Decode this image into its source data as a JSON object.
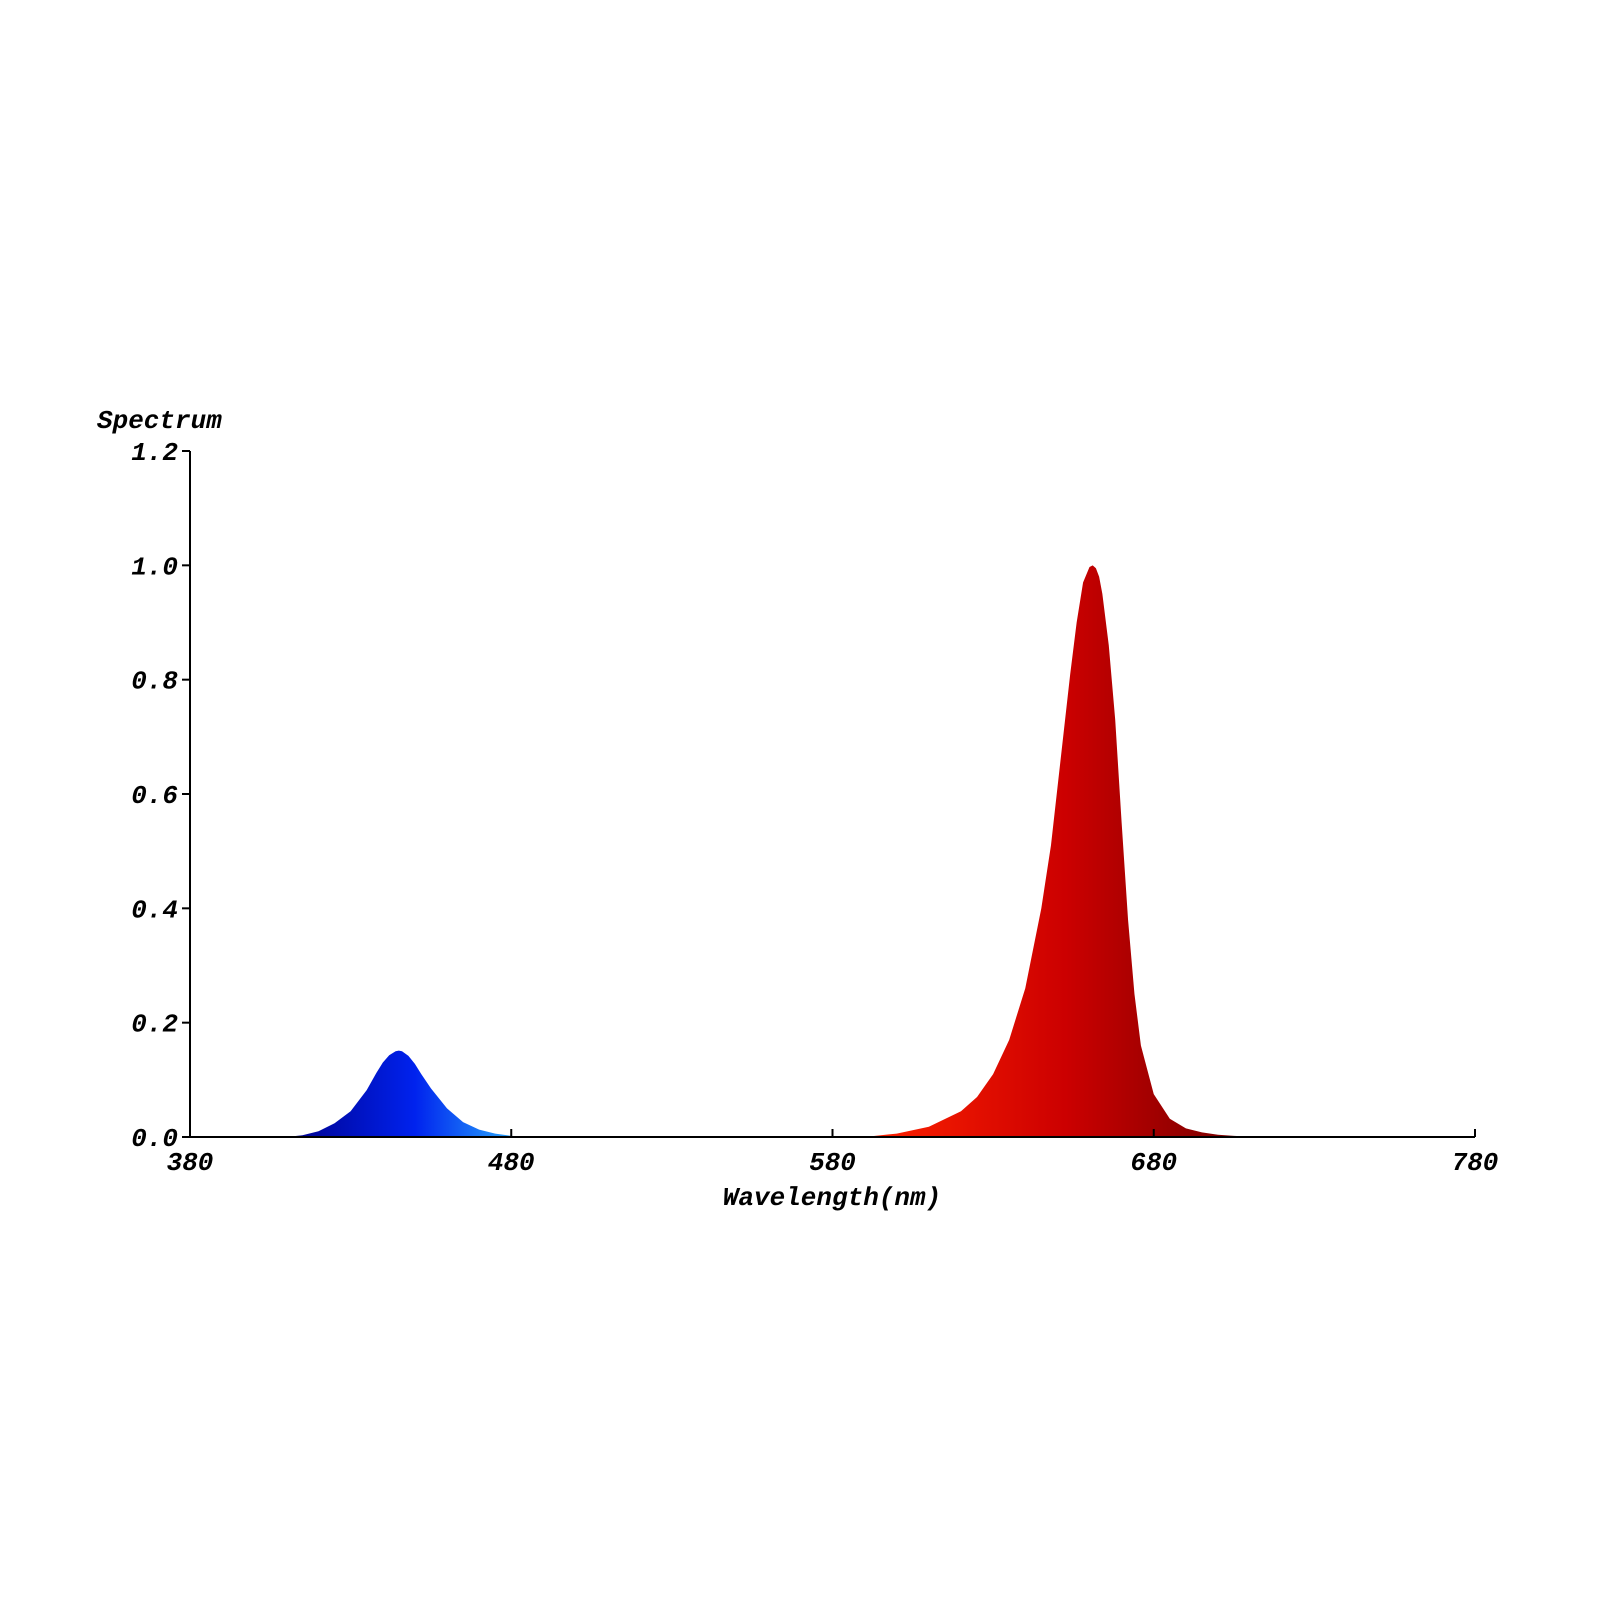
{
  "chart_data": {
    "type": "area",
    "xlabel": "Wavelength(nm)",
    "ylabel": "Spectrum",
    "xlim": [
      380,
      780
    ],
    "ylim": [
      0,
      1.2
    ],
    "xticks": [
      "380",
      "480",
      "580",
      "680",
      "780"
    ],
    "yticks": [
      "0.0",
      "0.2",
      "0.4",
      "0.6",
      "0.8",
      "1.0",
      "1.2"
    ],
    "grid": false,
    "series": [
      {
        "color_start": "#00008b",
        "color_mid": "#0022ee",
        "color_end": "#33ccff",
        "x": [
          410,
          415,
          420,
          425,
          430,
          435,
          438,
          440,
          442,
          444,
          445,
          446,
          448,
          450,
          452,
          455,
          460,
          465,
          470,
          475,
          480,
          485,
          490
        ],
        "y": [
          0.0,
          0.003,
          0.01,
          0.024,
          0.045,
          0.082,
          0.112,
          0.13,
          0.143,
          0.15,
          0.151,
          0.15,
          0.142,
          0.128,
          0.11,
          0.085,
          0.05,
          0.026,
          0.013,
          0.006,
          0.002,
          0.0005,
          0.0
        ]
      },
      {
        "color_start": "#ff2200",
        "color_mid": "#cc0000",
        "color_end": "#6b0000",
        "x": [
          590,
          600,
          610,
          620,
          625,
          630,
          635,
          640,
          645,
          648,
          650,
          652,
          654,
          656,
          658,
          660,
          661,
          662,
          663,
          664,
          666,
          668,
          670,
          672,
          674,
          676,
          680,
          685,
          690,
          695,
          700,
          705,
          710,
          715
        ],
        "y": [
          0.0,
          0.006,
          0.018,
          0.045,
          0.07,
          0.11,
          0.17,
          0.26,
          0.4,
          0.51,
          0.61,
          0.71,
          0.81,
          0.9,
          0.97,
          0.997,
          1.0,
          0.995,
          0.98,
          0.95,
          0.86,
          0.73,
          0.55,
          0.38,
          0.25,
          0.16,
          0.075,
          0.032,
          0.015,
          0.008,
          0.004,
          0.002,
          0.0007,
          0.0
        ]
      }
    ]
  }
}
